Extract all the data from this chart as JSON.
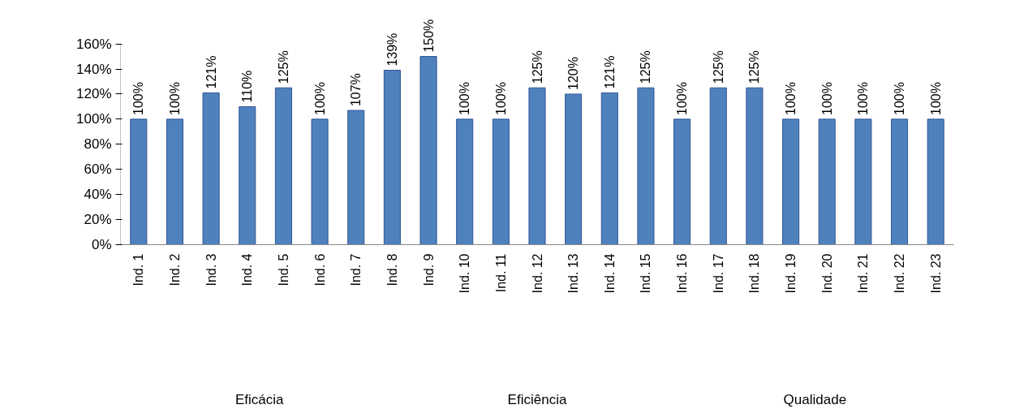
{
  "chart_data": {
    "type": "bar",
    "categories": [
      "Ind. 1",
      "Ind. 2",
      "Ind. 3",
      "Ind. 4",
      "Ind. 5",
      "Ind. 6",
      "Ind. 7",
      "Ind. 8",
      "Ind. 9",
      "Ind. 10",
      "Ind. 11",
      "Ind. 12",
      "Ind. 13",
      "Ind. 14",
      "Ind. 15",
      "Ind. 16",
      "Ind. 17",
      "Ind. 18",
      "Ind. 19",
      "Ind. 20",
      "Ind. 21",
      "Ind. 22",
      "Ind. 23"
    ],
    "values": [
      100,
      100,
      121,
      110,
      125,
      100,
      107,
      139,
      150,
      100,
      100,
      125,
      120,
      121,
      125,
      100,
      125,
      125,
      100,
      100,
      100,
      100,
      100
    ],
    "value_labels": [
      "100%",
      "100%",
      "121%",
      "110%",
      "125%",
      "100%",
      "107%",
      "139%",
      "150%",
      "100%",
      "100%",
      "125%",
      "120%",
      "121%",
      "125%",
      "100%",
      "125%",
      "125%",
      "100%",
      "100%",
      "100%",
      "100%",
      "100%"
    ],
    "color": "#4f81bd",
    "ylim": [
      0,
      160
    ],
    "yticks": [
      {
        "value": 0,
        "label": "0%"
      },
      {
        "value": 20,
        "label": "20%"
      },
      {
        "value": 40,
        "label": "40%"
      },
      {
        "value": 60,
        "label": "60%"
      },
      {
        "value": 80,
        "label": "80%"
      },
      {
        "value": 100,
        "label": "100%"
      },
      {
        "value": 120,
        "label": "120%"
      },
      {
        "value": 140,
        "label": "140%"
      },
      {
        "value": 160,
        "label": "160%"
      }
    ],
    "annotations": [
      "Eficácia",
      "Eficiência",
      "Qualidade"
    ],
    "grid": false
  }
}
